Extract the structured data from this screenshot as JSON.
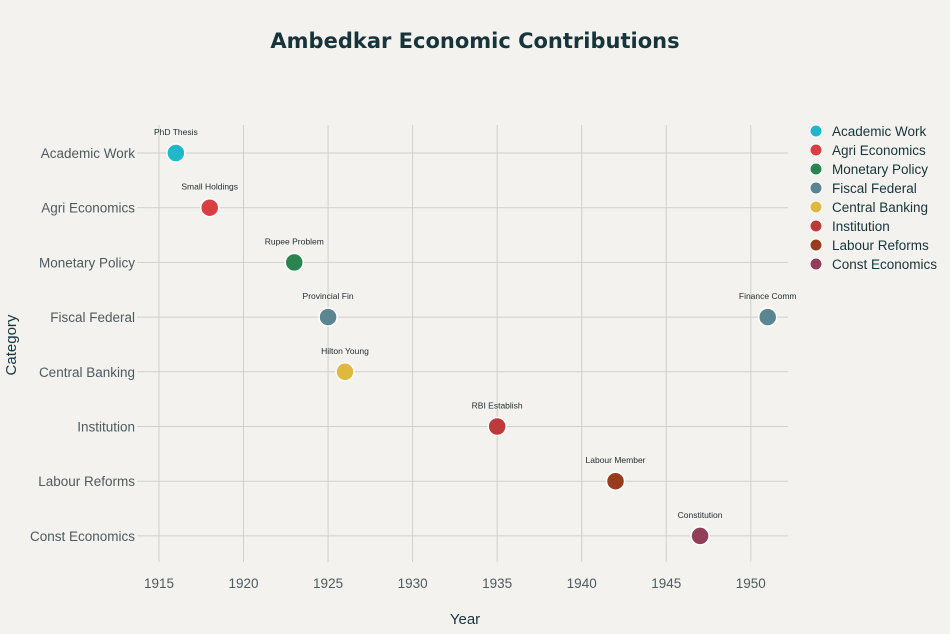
{
  "chart_data": {
    "type": "scatter",
    "title": "Ambedkar Economic Contributions",
    "xlabel": "Year",
    "ylabel": "Category",
    "xlim": [
      1913.7,
      1952.2
    ],
    "x_ticks": [
      1915,
      1920,
      1925,
      1930,
      1935,
      1940,
      1945,
      1950
    ],
    "grid": true,
    "legend_position": "right",
    "categories": [
      "Academic Work",
      "Agri Economics",
      "Monetary Policy",
      "Fiscal Federal",
      "Central Banking",
      "Institution",
      "Labour Reforms",
      "Const Economics"
    ],
    "series": [
      {
        "name": "Academic Work",
        "color": "#21b6c9",
        "points": [
          {
            "x": 1916,
            "label": "PhD Thesis"
          }
        ]
      },
      {
        "name": "Agri Economics",
        "color": "#da3e43",
        "points": [
          {
            "x": 1918,
            "label": "Small Holdings"
          }
        ]
      },
      {
        "name": "Monetary Policy",
        "color": "#2b8450",
        "points": [
          {
            "x": 1923,
            "label": "Rupee Problem"
          }
        ]
      },
      {
        "name": "Fiscal Federal",
        "color": "#5b8591",
        "points": [
          {
            "x": 1925,
            "label": "Provincial Fin"
          },
          {
            "x": 1951,
            "label": "Finance Comm"
          }
        ]
      },
      {
        "name": "Central Banking",
        "color": "#dfb83f",
        "points": [
          {
            "x": 1926,
            "label": "Hilton Young"
          }
        ]
      },
      {
        "name": "Institution",
        "color": "#be3a3a",
        "points": [
          {
            "x": 1935,
            "label": "RBI Establish"
          }
        ]
      },
      {
        "name": "Labour Reforms",
        "color": "#983c1e",
        "points": [
          {
            "x": 1942,
            "label": "Labour Member"
          }
        ]
      },
      {
        "name": "Const Economics",
        "color": "#933e59",
        "points": [
          {
            "x": 1947,
            "label": "Constitution"
          }
        ]
      }
    ]
  }
}
